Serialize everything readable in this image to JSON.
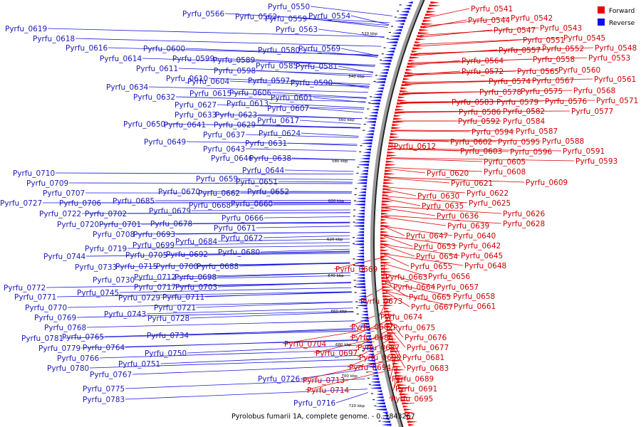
{
  "legend": {
    "forward_label": "Forward",
    "reverse_label": "Reverse",
    "forward_color": "#ee0000",
    "reverse_color": "#1010ee"
  },
  "caption": "Pyrolobus fumarii 1A, complete genome. - 0..1843267",
  "ticks": [
    "520 kbp",
    "540 kbp",
    "560 kbp",
    "580 kbp",
    "600 kbp",
    "620 kbp",
    "640 kbp",
    "660 kbp",
    "680 kbp",
    "700 kbp",
    "720 kbp"
  ],
  "forward_genes": [
    "Pyrfu_0541",
    "Pyrfu_0542",
    "Pyrfu_0544",
    "Pyrfu_0547",
    "Pyrfu_0543",
    "Pyrfu_0545",
    "Pyrfu_0551",
    "Pyrfu_0548",
    "Pyrfu_0557",
    "Pyrfu_0552",
    "Pyrfu_0553",
    "Pyrfu_0558",
    "Pyrfu_0564",
    "Pyrfu_0560",
    "Pyrfu_0572",
    "Pyrfu_0565",
    "Pyrfu_0561",
    "Pyrfu_0574",
    "Pyrfu_0567",
    "Pyrfu_0568",
    "Pyrfu_0578",
    "Pyrfu_0575",
    "Pyrfu_0571",
    "Pyrfu_0583",
    "Pyrfu_0579",
    "Pyrfu_0576",
    "Pyrfu_0586",
    "Pyrfu_0582",
    "Pyrfu_0577",
    "Pyrfu_0592",
    "Pyrfu_0584",
    "Pyrfu_0594",
    "Pyrfu_0587",
    "Pyrfu_0602",
    "Pyrfu_0595",
    "Pyrfu_0588",
    "Pyrfu_0603",
    "Pyrfu_0596",
    "Pyrfu_0591",
    "Pyrfu_0593",
    "Pyrfu_0612",
    "Pyrfu_0605",
    "Pyrfu_0608",
    "Pyrfu_0620",
    "Pyrfu_0609",
    "Pyrfu_0621",
    "Pyrfu_0622",
    "Pyrfu_0630",
    "Pyrfu_0625",
    "Pyrfu_0635",
    "Pyrfu_0626",
    "Pyrfu_0636",
    "Pyrfu_0628",
    "Pyrfu_0639",
    "Pyrfu_0647",
    "Pyrfu_0640",
    "Pyrfu_0653",
    "Pyrfu_0642",
    "Pyrfu_0654",
    "Pyrfu_0645",
    "Pyrfu_0655",
    "Pyrfu_0648",
    "Pyrfu_0669",
    "Pyrfu_0663",
    "Pyrfu_0656",
    "Pyrfu_0664",
    "Pyrfu_0657",
    "Pyrfu_0665",
    "Pyrfu_0658",
    "Pyrfu_0673",
    "Pyrfu_0667",
    "Pyrfu_0661",
    "Pyrfu_0674",
    "Pyrfu_0682",
    "Pyrfu_0675",
    "Pyrfu_0686",
    "Pyrfu_0676",
    "Pyrfu_0677",
    "Pyrfu_0704",
    "Pyrfu_0687",
    "Pyrfu_0697",
    "Pyrfu_0690",
    "Pyrfu_0681",
    "Pyrfu_0694",
    "Pyrfu_0683",
    "Pyrfu_0689",
    "Pyrfu_0713",
    "Pyrfu_0691",
    "Pyrfu_0714",
    "Pyrfu_0695"
  ],
  "reverse_genes": [
    "Pyrfu_0550",
    "Pyrfu_0566",
    "Pyrfu_0562",
    "Pyrfu_0559",
    "Pyrfu_0554",
    "Pyrfu_0563",
    "Pyrfu_0619",
    "Pyrfu_0618",
    "Pyrfu_0616",
    "Pyrfu_0580",
    "Pyrfu_0569",
    "Pyrfu_0600",
    "Pyrfu_0614",
    "Pyrfu_0599",
    "Pyrfu_0589",
    "Pyrfu_0585",
    "Pyrfu_0581",
    "Pyrfu_0611",
    "Pyrfu_0598",
    "Pyrfu_0610",
    "Pyrfu_0604",
    "Pyrfu_0597",
    "Pyrfu_0590",
    "Pyrfu_0634",
    "Pyrfu_0615",
    "Pyrfu_0606",
    "Pyrfu_0632",
    "Pyrfu_0601",
    "Pyrfu_0627",
    "Pyrfu_0613",
    "Pyrfu_0607",
    "Pyrfu_0633",
    "Pyrfu_0623",
    "Pyrfu_0650",
    "Pyrfu_0641",
    "Pyrfu_0629",
    "Pyrfu_0617",
    "Pyrfu_0637",
    "Pyrfu_0624",
    "Pyrfu_0649",
    "Pyrfu_0631",
    "Pyrfu_0643",
    "Pyrfu_0646",
    "Pyrfu_0638",
    "Pyrfu_0644",
    "Pyrfu_0710",
    "Pyrfu_0659",
    "Pyrfu_0651",
    "Pyrfu_0709",
    "Pyrfu_0670",
    "Pyrfu_0662",
    "Pyrfu_0652",
    "Pyrfu_0707",
    "Pyrfu_0685",
    "Pyrfu_0668",
    "Pyrfu_0660",
    "Pyrfu_0727",
    "Pyrfu_0706",
    "Pyrfu_0722",
    "Pyrfu_0702",
    "Pyrfu_0679",
    "Pyrfu_0666",
    "Pyrfu_0720",
    "Pyrfu_0701",
    "Pyrfu_0678",
    "Pyrfu_0671",
    "Pyrfu_0708",
    "Pyrfu_0693",
    "Pyrfu_0672",
    "Pyrfu_0684",
    "Pyrfu_0719",
    "Pyrfu_0699",
    "Pyrfu_0680",
    "Pyrfu_0744",
    "Pyrfu_0705",
    "Pyrfu_0692",
    "Pyrfu_0733",
    "Pyrfu_0715",
    "Pyrfu_0700",
    "Pyrfu_0688",
    "Pyrfu_0730",
    "Pyrfu_0712",
    "Pyrfu_0698",
    "Pyrfu_0772",
    "Pyrfu_0717",
    "Pyrfu_0703",
    "Pyrfu_0745",
    "Pyrfu_0729",
    "Pyrfu_0771",
    "Pyrfu_0711",
    "Pyrfu_0770",
    "Pyrfu_0721",
    "Pyrfu_0743",
    "Pyrfu_0769",
    "Pyrfu_0728",
    "Pyrfu_0768",
    "Pyrfu_0734",
    "Pyrfu_0781",
    "Pyrfu_0765",
    "Pyrfu_0779",
    "Pyrfu_0764",
    "Pyrfu_0750",
    "Pyrfu_0766",
    "Pyrfu_0751",
    "Pyrfu_0780",
    "Pyrfu_0767",
    "Pyrfu_0726",
    "Pyrfu_0775",
    "Pyrfu_0716",
    "Pyrfu_0783"
  ]
}
